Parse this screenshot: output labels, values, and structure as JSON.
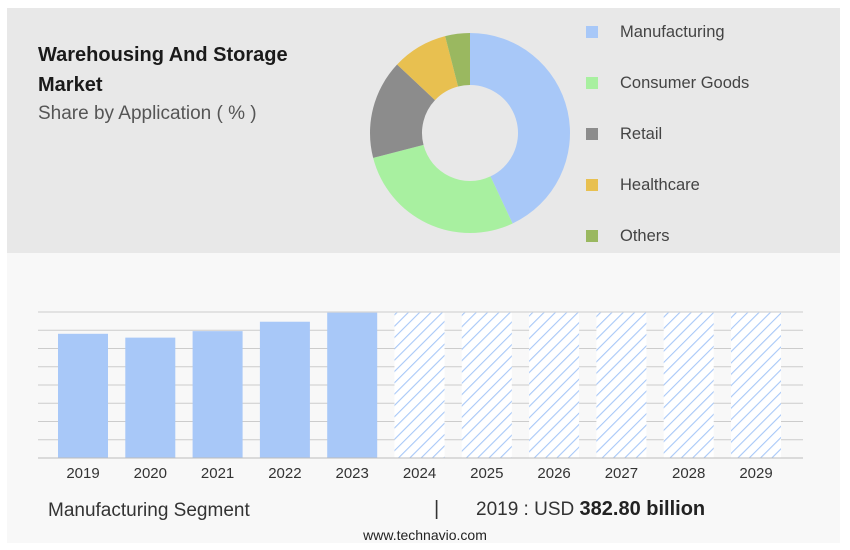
{
  "header": {
    "title": "Warehousing And Storage Market",
    "subtitle": "Share by Application ( % )"
  },
  "colors": {
    "panel_top": "#e8e8e8",
    "panel_bottom": "#f8f8f8",
    "bar": "#a8c8f8",
    "hatch": "#a8c8f8",
    "grid": "#cccccc"
  },
  "chart_data": [
    {
      "type": "pie",
      "title": "Share by Application ( % )",
      "donut": true,
      "categories": [
        "Manufacturing",
        "Consumer Goods",
        "Retail",
        "Healthcare",
        "Others"
      ],
      "values": [
        43,
        28,
        16,
        9,
        4
      ],
      "colors": [
        "#a8c8f8",
        "#a8f0a0",
        "#8c8c8c",
        "#e8c050",
        "#9ab860"
      ],
      "legend": "right"
    },
    {
      "type": "bar",
      "categories": [
        "2019",
        "2020",
        "2021",
        "2022",
        "2023",
        "2024",
        "2025",
        "2026",
        "2027",
        "2028",
        "2029"
      ],
      "values": [
        382.8,
        371,
        391,
        420,
        448,
        448,
        448,
        448,
        448,
        448,
        448
      ],
      "forecast": [
        false,
        false,
        false,
        false,
        false,
        true,
        true,
        true,
        true,
        true,
        true
      ],
      "ylim": [
        0,
        450
      ],
      "grid": true,
      "xlabel": "",
      "ylabel": ""
    }
  ],
  "footer": {
    "segment": "Manufacturing Segment",
    "separator": "|",
    "year_label": "2019 : USD",
    "value": "382.80 billion",
    "website": "www.technavio.com"
  }
}
